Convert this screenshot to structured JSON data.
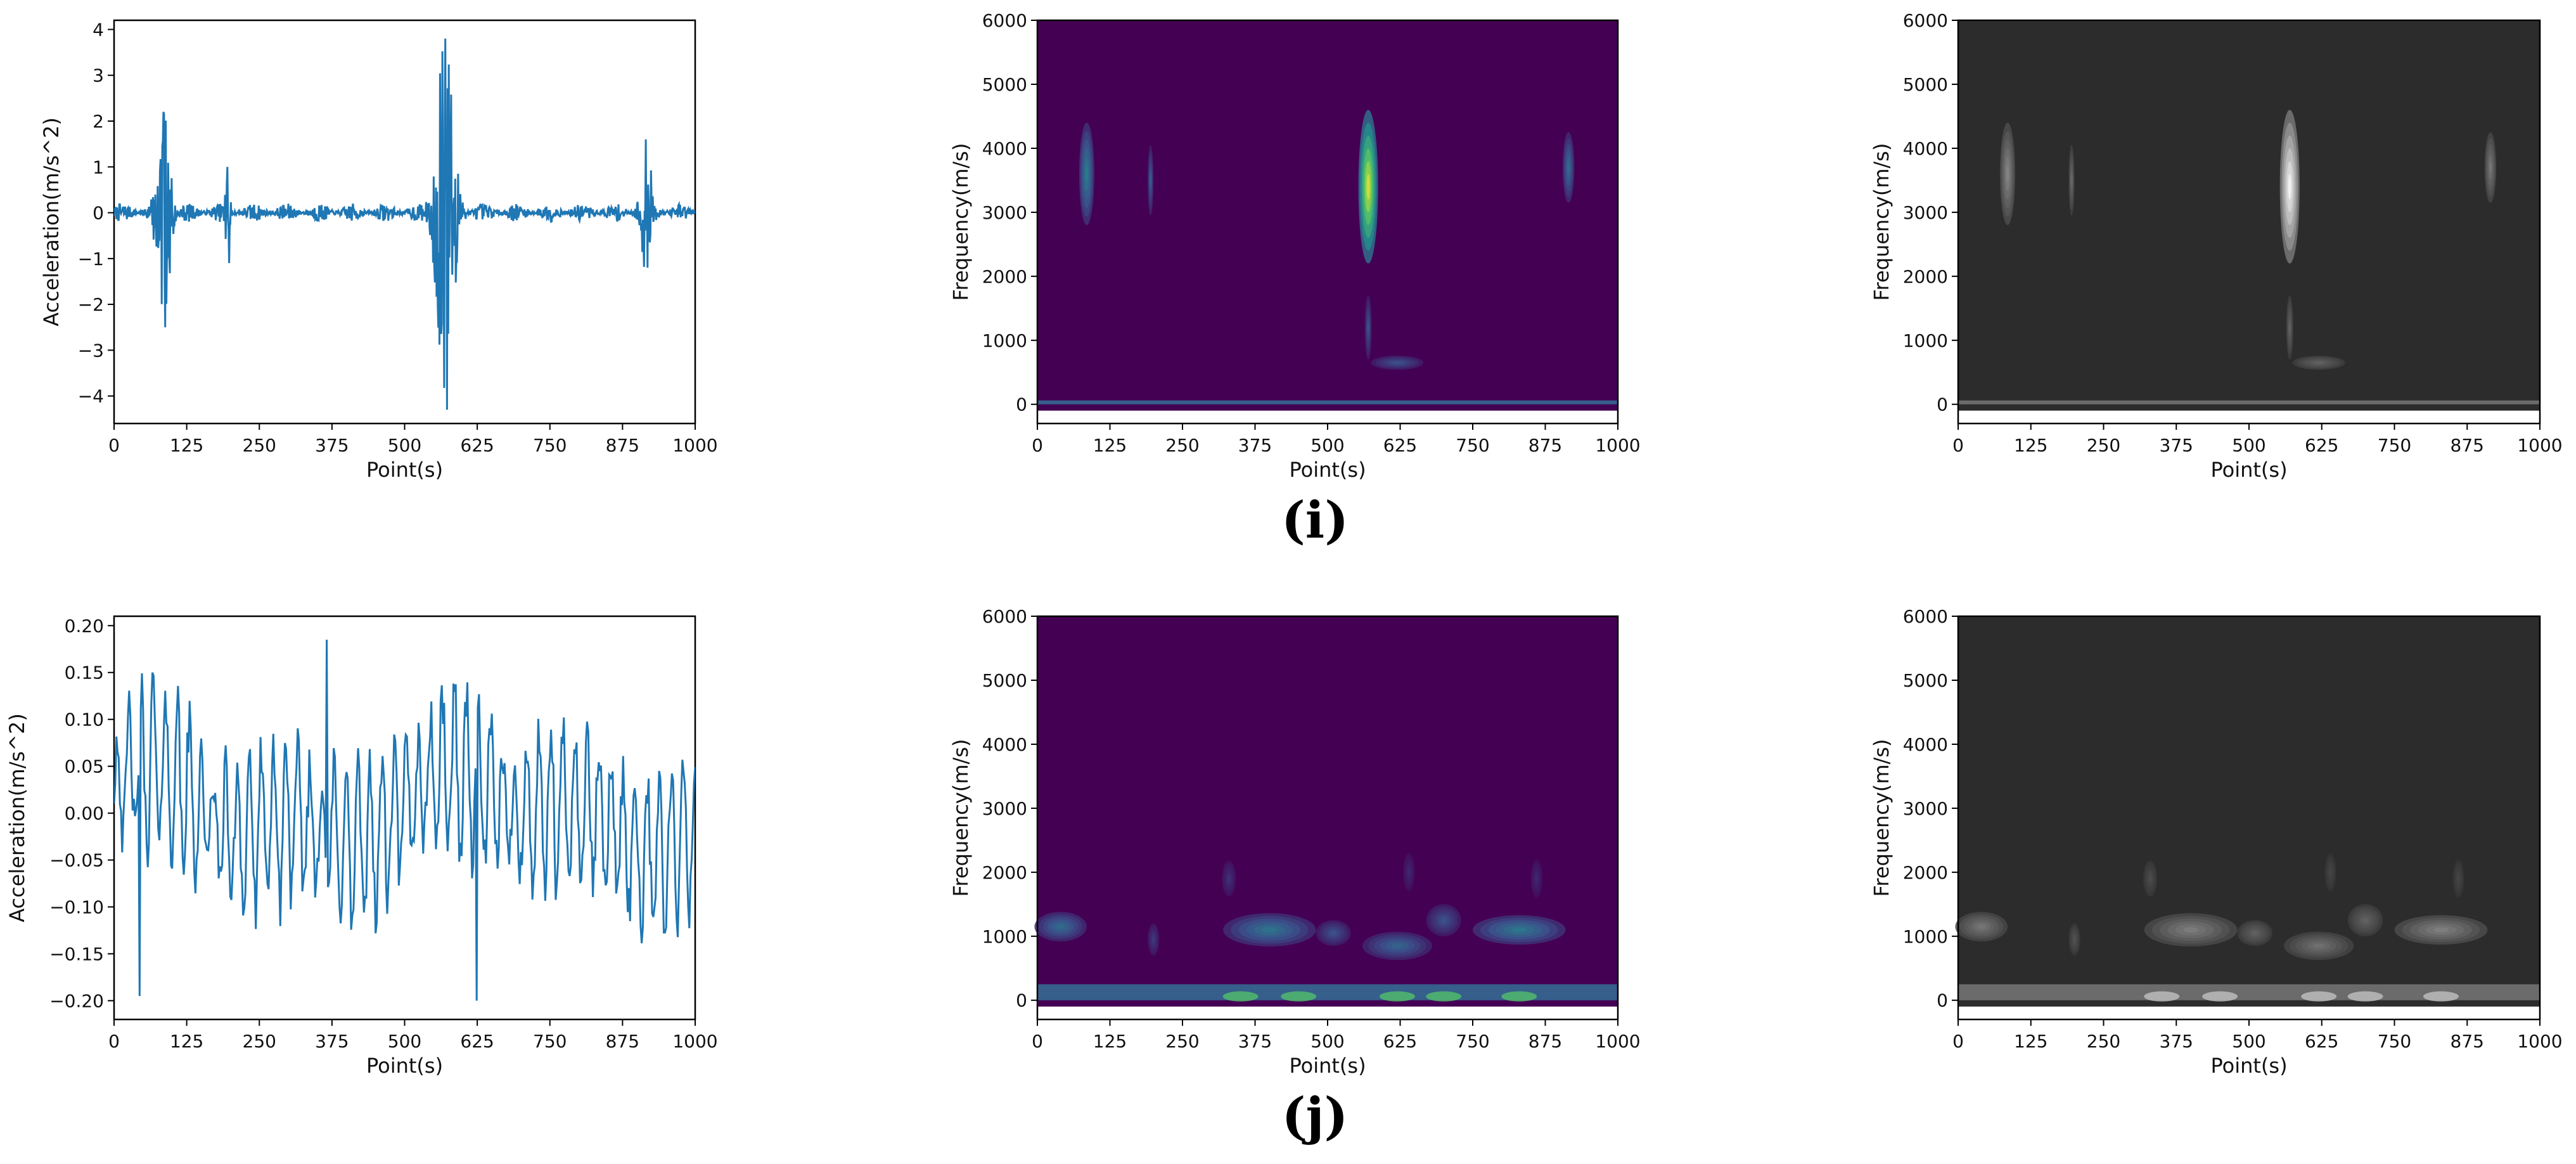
{
  "panel_labels": [
    "(i)",
    "(j)"
  ],
  "colors": {
    "line": "#1f77b4",
    "viridis_bg": "#440154",
    "gray_bg": "#2c2c2c",
    "axis": "#000000"
  },
  "chart_data": [
    {
      "id": "i-signal",
      "type": "line",
      "xlabel": "Point(s)",
      "ylabel": "Acceleration(m/s^2)",
      "xlim": [
        0,
        1000
      ],
      "ylim": [
        -4.6,
        4.2
      ],
      "xticks": [
        0,
        125,
        250,
        375,
        500,
        625,
        750,
        875,
        1000
      ],
      "yticks": [
        -4,
        -3,
        -2,
        -1,
        0,
        1,
        2,
        3,
        4
      ],
      "ytick_labels": [
        "−4",
        "−3",
        "−2",
        "−1",
        "0",
        "1",
        "2",
        "3",
        "4"
      ],
      "bursts": [
        {
          "x": 85,
          "peak_pos": 2.2,
          "peak_neg": -2.5,
          "width": 30
        },
        {
          "x": 195,
          "peak_pos": 1.0,
          "peak_neg": -1.1,
          "width": 10
        },
        {
          "x": 570,
          "peak_pos": 3.8,
          "peak_neg": -4.3,
          "width": 40
        },
        {
          "x": 915,
          "peak_pos": 1.6,
          "peak_neg": -1.2,
          "width": 25
        }
      ],
      "baseline_noise": 0.2
    },
    {
      "id": "i-spectrogram-color",
      "type": "heatmap",
      "colormap": "viridis",
      "xlabel": "Point(s)",
      "ylabel": "Frequency(m/s)",
      "xlim": [
        0,
        1000
      ],
      "ylim": [
        -300,
        6000
      ],
      "xticks": [
        0,
        125,
        250,
        375,
        500,
        625,
        750,
        875,
        1000
      ],
      "yticks": [
        0,
        1000,
        2000,
        3000,
        4000,
        5000,
        6000
      ],
      "blobs": [
        {
          "x": 85,
          "f": 3600,
          "dx": 13,
          "df": 800,
          "intensity": 0.42
        },
        {
          "x": 195,
          "f": 3500,
          "dx": 5,
          "df": 550,
          "intensity": 0.28
        },
        {
          "x": 570,
          "f": 3400,
          "dx": 17,
          "df": 1200,
          "intensity": 0.95
        },
        {
          "x": 570,
          "f": 1200,
          "dx": 6,
          "df": 500,
          "intensity": 0.25
        },
        {
          "x": 620,
          "f": 650,
          "dx": 45,
          "df": 110,
          "intensity": 0.25
        },
        {
          "x": 915,
          "f": 3700,
          "dx": 10,
          "df": 550,
          "intensity": 0.35
        }
      ],
      "baseline_band": [
        0,
        60
      ]
    },
    {
      "id": "i-spectrogram-gray",
      "type": "heatmap",
      "colormap": "gray",
      "xlabel": "Point(s)",
      "ylabel": "Frequency(m/s)",
      "xlim": [
        0,
        1000
      ],
      "ylim": [
        -300,
        6000
      ],
      "xticks": [
        0,
        125,
        250,
        375,
        500,
        625,
        750,
        875,
        1000
      ],
      "yticks": [
        0,
        1000,
        2000,
        3000,
        4000,
        5000,
        6000
      ],
      "blobs": [
        {
          "x": 85,
          "f": 3600,
          "dx": 13,
          "df": 800,
          "intensity": 0.42
        },
        {
          "x": 195,
          "f": 3500,
          "dx": 5,
          "df": 550,
          "intensity": 0.28
        },
        {
          "x": 570,
          "f": 3400,
          "dx": 17,
          "df": 1200,
          "intensity": 0.95
        },
        {
          "x": 570,
          "f": 1200,
          "dx": 6,
          "df": 500,
          "intensity": 0.25
        },
        {
          "x": 620,
          "f": 650,
          "dx": 45,
          "df": 110,
          "intensity": 0.25
        },
        {
          "x": 915,
          "f": 3700,
          "dx": 10,
          "df": 550,
          "intensity": 0.35
        }
      ],
      "baseline_band": [
        0,
        60
      ]
    },
    {
      "id": "j-signal",
      "type": "line",
      "xlabel": "Point(s)",
      "ylabel": "Acceleration(m/s^2)",
      "xlim": [
        0,
        1000
      ],
      "ylim": [
        -0.22,
        0.21
      ],
      "xticks": [
        0,
        125,
        250,
        375,
        500,
        625,
        750,
        875,
        1000
      ],
      "yticks": [
        -0.2,
        -0.15,
        -0.1,
        -0.05,
        0,
        0.05,
        0.1,
        0.15,
        0.2
      ],
      "ytick_labels": [
        "−0.20",
        "−0.15",
        "−0.10",
        "−0.05",
        "0.00",
        "0.05",
        "0.10",
        "0.15",
        "0.20"
      ],
      "max_value": 0.185,
      "min_value": -0.2
    },
    {
      "id": "j-spectrogram-color",
      "type": "heatmap",
      "colormap": "viridis",
      "xlabel": "Point(s)",
      "ylabel": "Frequency(m/s)",
      "xlim": [
        0,
        1000
      ],
      "ylim": [
        -300,
        6000
      ],
      "xticks": [
        0,
        125,
        250,
        375,
        500,
        625,
        750,
        875,
        1000
      ],
      "yticks": [
        0,
        1000,
        2000,
        3000,
        4000,
        5000,
        6000
      ],
      "blobs": [
        {
          "x": 40,
          "f": 1150,
          "dx": 45,
          "df": 230,
          "intensity": 0.35
        },
        {
          "x": 400,
          "f": 1100,
          "dx": 80,
          "df": 260,
          "intensity": 0.38
        },
        {
          "x": 510,
          "f": 1050,
          "dx": 30,
          "df": 200,
          "intensity": 0.25
        },
        {
          "x": 620,
          "f": 850,
          "dx": 60,
          "df": 220,
          "intensity": 0.32
        },
        {
          "x": 700,
          "f": 1250,
          "dx": 30,
          "df": 250,
          "intensity": 0.25
        },
        {
          "x": 830,
          "f": 1100,
          "dx": 80,
          "df": 230,
          "intensity": 0.4
        },
        {
          "x": 200,
          "f": 950,
          "dx": 10,
          "df": 250,
          "intensity": 0.18
        },
        {
          "x": 330,
          "f": 1900,
          "dx": 12,
          "df": 280,
          "intensity": 0.15
        },
        {
          "x": 640,
          "f": 2000,
          "dx": 10,
          "df": 300,
          "intensity": 0.12
        },
        {
          "x": 860,
          "f": 1900,
          "dx": 10,
          "df": 300,
          "intensity": 0.12
        }
      ],
      "baseline_band": [
        0,
        250
      ],
      "baseline_bright": [
        350,
        450,
        620,
        700,
        830
      ]
    },
    {
      "id": "j-spectrogram-gray",
      "type": "heatmap",
      "colormap": "gray",
      "xlabel": "Point(s)",
      "ylabel": "Frequency(m/s)",
      "xlim": [
        0,
        1000
      ],
      "ylim": [
        -300,
        6000
      ],
      "xticks": [
        0,
        125,
        250,
        375,
        500,
        625,
        750,
        875,
        1000
      ],
      "yticks": [
        0,
        1000,
        2000,
        3000,
        4000,
        5000,
        6000
      ],
      "blobs": [
        {
          "x": 40,
          "f": 1150,
          "dx": 45,
          "df": 230,
          "intensity": 0.35
        },
        {
          "x": 400,
          "f": 1100,
          "dx": 80,
          "df": 260,
          "intensity": 0.38
        },
        {
          "x": 510,
          "f": 1050,
          "dx": 30,
          "df": 200,
          "intensity": 0.25
        },
        {
          "x": 620,
          "f": 850,
          "dx": 60,
          "df": 220,
          "intensity": 0.32
        },
        {
          "x": 700,
          "f": 1250,
          "dx": 30,
          "df": 250,
          "intensity": 0.25
        },
        {
          "x": 830,
          "f": 1100,
          "dx": 80,
          "df": 230,
          "intensity": 0.4
        },
        {
          "x": 200,
          "f": 950,
          "dx": 10,
          "df": 250,
          "intensity": 0.18
        },
        {
          "x": 330,
          "f": 1900,
          "dx": 12,
          "df": 280,
          "intensity": 0.15
        },
        {
          "x": 640,
          "f": 2000,
          "dx": 10,
          "df": 300,
          "intensity": 0.12
        },
        {
          "x": 860,
          "f": 1900,
          "dx": 10,
          "df": 300,
          "intensity": 0.12
        }
      ],
      "baseline_band": [
        0,
        250
      ],
      "baseline_bright": [
        350,
        450,
        620,
        700,
        830
      ]
    }
  ]
}
